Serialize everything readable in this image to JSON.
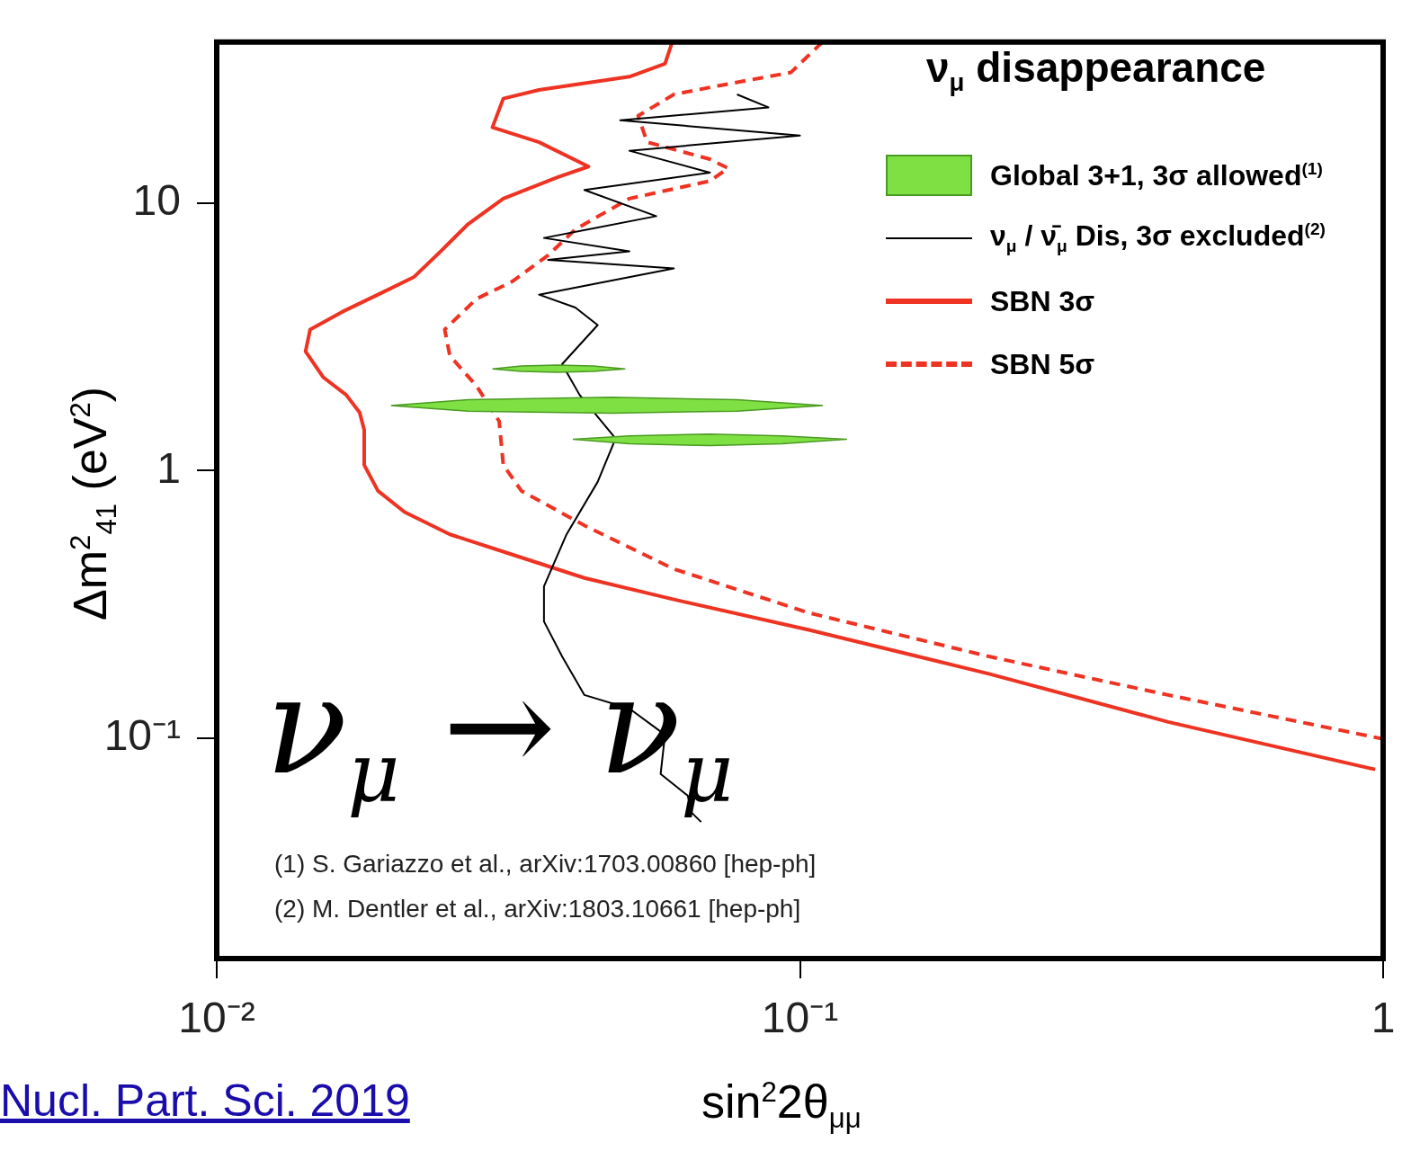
{
  "chart_data": {
    "type": "line",
    "title": "ν$_{μ}$ disappearance",
    "xlabel": "sin$^{2}$2θ$_{μμ}$",
    "ylabel": "Δm$^{2}$$_{41}$ (eV$^{2}$)",
    "log": "xy",
    "xlim": [
      0.01,
      1
    ],
    "ylim": [
      0.015,
      40
    ],
    "xticks": [
      {
        "value": 0.01,
        "label": "10⁻²"
      },
      {
        "value": 0.1,
        "label": "10⁻¹"
      },
      1
    ],
    "yticks": [
      {
        "value": 0.1,
        "label": "10⁻¹"
      },
      1,
      10
    ],
    "grid": false,
    "legend": "top right",
    "marker": "none",
    "series": [
      {
        "name": "Global 3+1, 3σ allowed$^{(1)}$",
        "type": "area",
        "color": "#7fe043",
        "x": [
          0.0297,
          0.0333,
          0.0384,
          0.0442,
          0.0501,
          0.0442,
          0.0384,
          0.0333,
          0.0297
        ],
        "values": [
          2.4,
          2.46,
          2.48,
          2.46,
          2.4,
          2.35,
          2.33,
          2.35,
          2.4
        ]
      },
      {
        "type": "area",
        "color": "#7fe043",
        "x": [
          0.0199,
          0.0269,
          0.0475,
          0.078,
          0.1093,
          0.078,
          0.0475,
          0.0269,
          0.0199
        ],
        "values": [
          1.75,
          1.84,
          1.88,
          1.84,
          1.75,
          1.67,
          1.64,
          1.67,
          1.75
        ]
      },
      {
        "type": "area",
        "color": "#7fe043",
        "x": [
          0.0408,
          0.051,
          0.0701,
          0.0931,
          0.1202,
          0.0931,
          0.0701,
          0.051,
          0.0408
        ],
        "values": [
          1.31,
          1.35,
          1.37,
          1.35,
          1.31,
          1.26,
          1.24,
          1.26,
          1.31
        ]
      },
      {
        "name": "ν$_{μ}$ / ν̄$_{μ}$ Dis, 3σ excluded$^{(2)}$",
        "type": "line",
        "color": "#000000",
        "line_style": "solid",
        "x": [
          0.078,
          0.0883,
          0.0492,
          0.1,
          0.051,
          0.0701,
          0.0427,
          0.0567,
          0.0364,
          0.051,
          0.037,
          0.0608,
          0.0357,
          0.0412,
          0.045,
          0.0391,
          0.0419,
          0.0483,
          0.045,
          0.0398,
          0.0364,
          0.0364,
          0.0391,
          0.0427,
          0.051,
          0.0587,
          0.0577,
          0.0642,
          0.0653,
          0.0677
        ],
        "values": [
          25.5,
          22.8,
          20.4,
          17.9,
          15.7,
          13.0,
          11.2,
          8.94,
          7.41,
          6.6,
          6.14,
          5.7,
          4.55,
          4.07,
          3.5,
          2.5,
          1.92,
          1.32,
          0.908,
          0.578,
          0.369,
          0.273,
          0.202,
          0.145,
          0.129,
          0.103,
          0.0735,
          0.061,
          0.0525,
          0.0486
        ]
      },
      {
        "name": "SBN 3σ",
        "type": "line",
        "color": "#ee3322",
        "line_style": "solid",
        "x": [
          0.0604,
          0.0587,
          0.051,
          0.0357,
          0.031,
          0.0297,
          0.0357,
          0.0434,
          0.0384,
          0.031,
          0.0269,
          0.0242,
          0.0218,
          0.0189,
          0.0164,
          0.01446,
          0.0142,
          0.01524,
          0.01667,
          0.01758,
          0.0179,
          0.0179,
          0.0189,
          0.021,
          0.0251,
          0.031,
          0.0427,
          0.0608,
          0.1036,
          0.211,
          0.428,
          0.969
        ],
        "values": [
          40,
          33.2,
          29.7,
          26.5,
          24.6,
          19.2,
          16.9,
          13.7,
          12.5,
          10.4,
          8.3,
          6.6,
          5.3,
          4.55,
          3.92,
          3.37,
          2.79,
          2.23,
          1.92,
          1.65,
          1.42,
          1.05,
          0.84,
          0.7,
          0.578,
          0.498,
          0.397,
          0.33,
          0.254,
          0.174,
          0.115,
          0.0764
        ]
      },
      {
        "name": "SBN 5σ",
        "type": "line",
        "color": "#ee3322",
        "line_style": "dotted",
        "x": [
          0.1093,
          0.0965,
          0.0727,
          0.0608,
          0.0528,
          0.0547,
          0.0701,
          0.0753,
          0.0701,
          0.051,
          0.0412,
          0.037,
          0.0321,
          0.0279,
          0.0246,
          0.0251,
          0.0279,
          0.0305,
          0.031,
          0.0333,
          0.0427,
          0.0608,
          0.1036,
          0.211,
          0.428,
          1.0
        ],
        "values": [
          40,
          30.8,
          27.5,
          25.5,
          21.2,
          16.9,
          14.6,
          13.5,
          12.1,
          10.4,
          7.98,
          6.38,
          5.09,
          4.39,
          3.37,
          2.69,
          2.07,
          1.53,
          1.05,
          0.84,
          0.624,
          0.429,
          0.294,
          0.202,
          0.145,
          0.0993
        ]
      }
    ],
    "annotations": [
      "ν$_{μ}$ → ν$_{μ}$",
      "(1) S. Gariazzo et al., arXiv:1703.00860 [hep-ph]",
      "(2) M. Dentler et al., arXiv:1803.10661 [hep-ph]",
      "Nucl. Part. Sci. 2019"
    ]
  }
}
